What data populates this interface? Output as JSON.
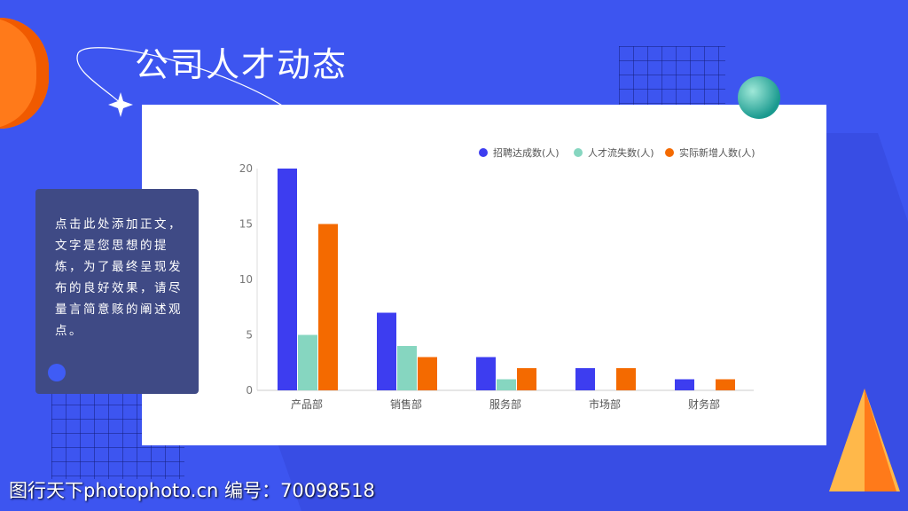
{
  "title": "公司人才动态",
  "textbox": "点击此处添加正文，文字是您思想的提炼，为了最终呈现发布的良好效果，请尽量言简意赅的阐述观点。",
  "watermark": "图行天下photophoto.cn 编号：70098518",
  "chart_data": {
    "type": "bar",
    "title": "",
    "categories": [
      "产品部",
      "销售部",
      "服务部",
      "市场部",
      "财务部"
    ],
    "series": [
      {
        "name": "招聘达成数(人)",
        "color": "#3d3df0",
        "values": [
          20,
          7,
          3,
          2,
          1
        ]
      },
      {
        "name": "人才流失数(人)",
        "color": "#86d6c0",
        "values": [
          5,
          4,
          1,
          0,
          0
        ]
      },
      {
        "name": "实际新增人数(人)",
        "color": "#f46a00",
        "values": [
          15,
          3,
          2,
          2,
          1
        ]
      }
    ],
    "yticks": [
      0,
      5,
      10,
      15,
      20
    ],
    "ylim": [
      0,
      20
    ],
    "legend": "top-right",
    "grid": false
  }
}
